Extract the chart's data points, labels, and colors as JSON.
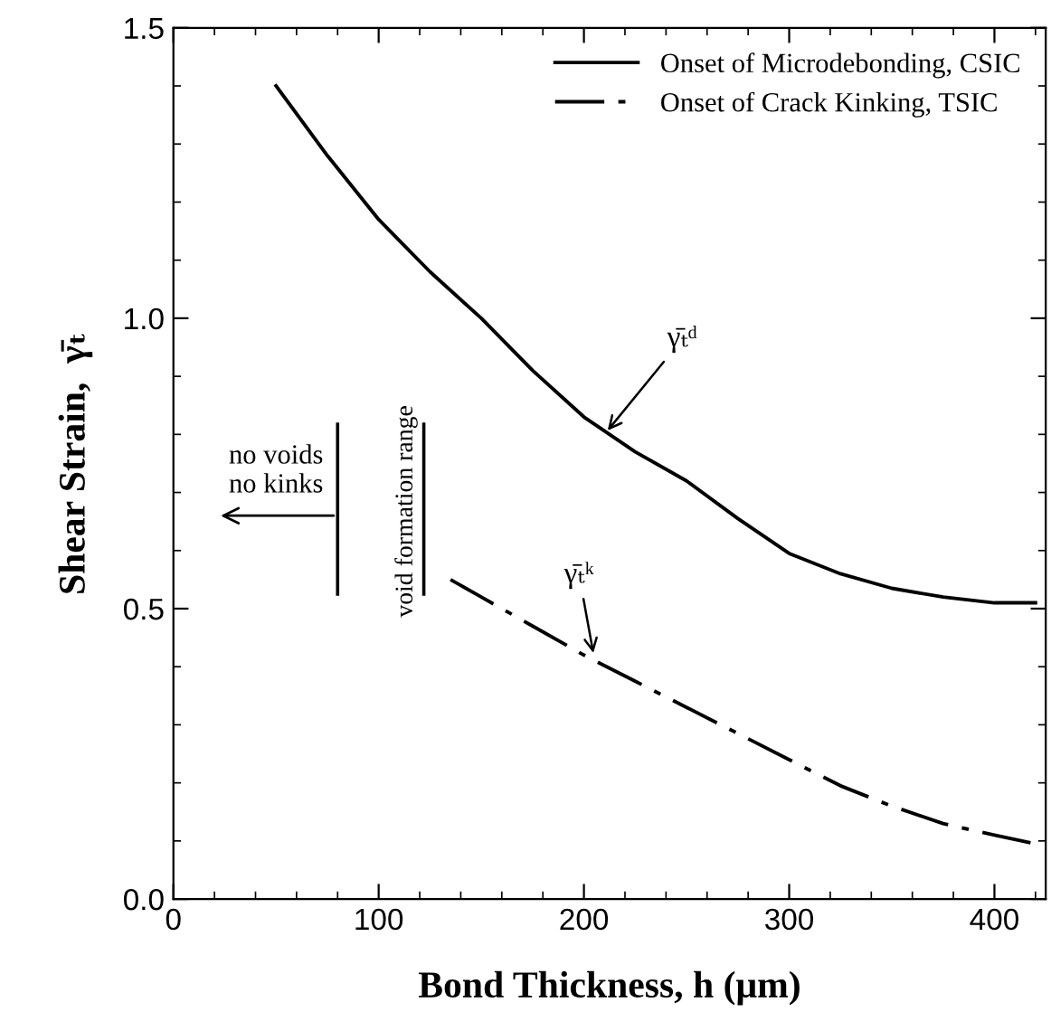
{
  "chart_data": {
    "type": "line",
    "xlabel": "Bond Thickness, h (μm)",
    "ylabel": "Shear Strain,  γ̄ₜ",
    "series": [
      {
        "name": "Onset of Microdebonding, CSIC",
        "color": "#000000",
        "line_style": "solid",
        "x": [
          50,
          75,
          100,
          125,
          150,
          175,
          200,
          225,
          250,
          275,
          300,
          325,
          350,
          375,
          400,
          420
        ],
        "values": [
          1.4,
          1.28,
          1.17,
          1.08,
          1.0,
          0.91,
          0.83,
          0.77,
          0.72,
          0.655,
          0.595,
          0.56,
          0.535,
          0.52,
          0.51,
          0.51
        ]
      },
      {
        "name": "Onset of Crack Kinking, TSIC",
        "color": "#000000",
        "line_style": "dashdot",
        "x": [
          135,
          150,
          175,
          200,
          225,
          250,
          275,
          300,
          325,
          350,
          375,
          400,
          420
        ],
        "values": [
          0.55,
          0.52,
          0.47,
          0.42,
          0.375,
          0.33,
          0.285,
          0.24,
          0.195,
          0.16,
          0.13,
          0.11,
          0.095
        ]
      }
    ],
    "annotations": [
      {
        "text": "γ̄ₜᵈ",
        "x": 210,
        "y": 0.8
      },
      {
        "text": "γ̄ₜᵏ",
        "x": 205,
        "y": 0.415
      },
      "no voids\nno kinks"
    ],
    "ref_lines": [
      {
        "axis": "x",
        "value": 80
      },
      {
        "axis": "x",
        "value": 122,
        "label": "void formation range"
      }
    ],
    "xlim": [
      0,
      425
    ],
    "ylim": [
      0,
      1.5
    ],
    "xticks": [
      0,
      100,
      200,
      300,
      400
    ],
    "yticks": [
      {
        "value": 0,
        "label": "0.0"
      },
      {
        "value": 0.5,
        "label": "0.5"
      },
      {
        "value": 1.0,
        "label": "1.0"
      },
      {
        "value": 1.5,
        "label": "1.5"
      }
    ],
    "grid": false,
    "legend": "top right",
    "marker": "none"
  }
}
